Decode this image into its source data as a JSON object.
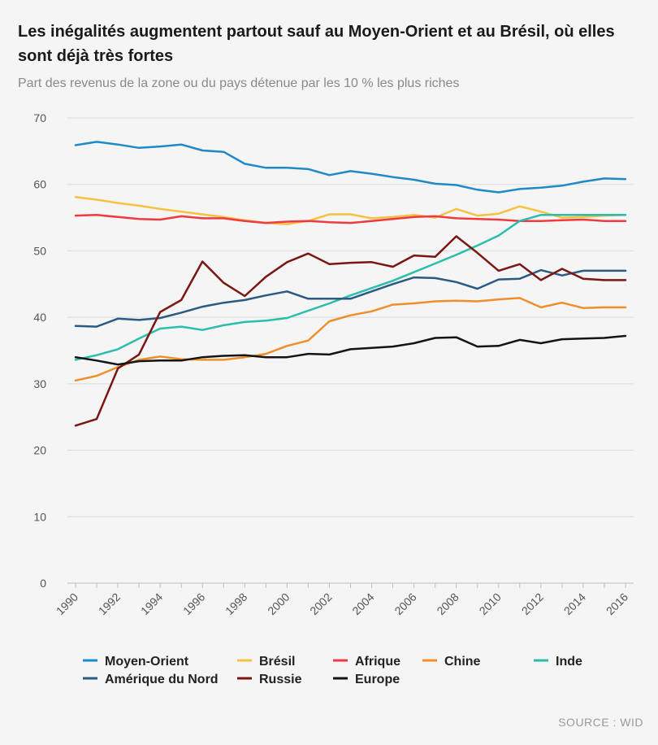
{
  "chart_data": {
    "type": "line",
    "title": "Les inégalités augmentent partout sauf au Moyen-Orient et au Brésil, où elles sont déjà très fortes",
    "subtitle": "Part des revenus de la zone ou du pays détenue par les 10 % les plus riches",
    "xlabel": "",
    "ylabel": "",
    "ylim": [
      0,
      70
    ],
    "yticks": [
      0,
      10,
      20,
      30,
      40,
      50,
      60,
      70
    ],
    "grid": true,
    "legend_position": "bottom",
    "x": [
      1990,
      1991,
      1992,
      1993,
      1994,
      1995,
      1996,
      1997,
      1998,
      1999,
      2000,
      2001,
      2002,
      2003,
      2004,
      2005,
      2006,
      2007,
      2008,
      2009,
      2010,
      2011,
      2012,
      2013,
      2014,
      2015,
      2016
    ],
    "xticks": [
      1990,
      1992,
      1994,
      1996,
      1998,
      2000,
      2002,
      2004,
      2006,
      2008,
      2010,
      2012,
      2014,
      2016
    ],
    "series": [
      {
        "name": "Moyen-Orient",
        "color": "#1f8ac8",
        "values": [
          65.9,
          66.4,
          66.0,
          65.5,
          65.7,
          66.0,
          65.1,
          64.9,
          63.1,
          62.5,
          62.5,
          62.3,
          61.4,
          62.0,
          61.6,
          61.1,
          60.7,
          60.1,
          59.9,
          59.2,
          58.8,
          59.3,
          59.5,
          59.8,
          60.4,
          60.9,
          60.8
        ]
      },
      {
        "name": "Brésil",
        "color": "#f5c242",
        "values": [
          58.1,
          57.7,
          57.2,
          56.8,
          56.3,
          55.9,
          55.5,
          55.1,
          54.6,
          54.2,
          54.0,
          54.5,
          55.5,
          55.5,
          54.9,
          55.1,
          55.4,
          55.0,
          56.3,
          55.3,
          55.6,
          56.7,
          55.9,
          55.0,
          55.1,
          55.3,
          55.4
        ]
      },
      {
        "name": "Afrique",
        "color": "#ef3a40",
        "values": [
          55.3,
          55.4,
          55.1,
          54.8,
          54.7,
          55.2,
          54.9,
          54.9,
          54.5,
          54.2,
          54.4,
          54.5,
          54.3,
          54.2,
          54.5,
          54.8,
          55.1,
          55.2,
          54.9,
          54.8,
          54.7,
          54.5,
          54.5,
          54.6,
          54.7,
          54.5,
          54.5
        ]
      },
      {
        "name": "Chine",
        "color": "#ef8f2a",
        "values": [
          30.5,
          31.2,
          32.5,
          33.6,
          34.1,
          33.7,
          33.6,
          33.6,
          34.0,
          34.5,
          35.7,
          36.5,
          39.4,
          40.3,
          40.9,
          41.9,
          42.1,
          42.4,
          42.5,
          42.4,
          42.7,
          42.9,
          41.5,
          42.2,
          41.4,
          41.5,
          41.5
        ]
      },
      {
        "name": "Inde",
        "color": "#2cbdab",
        "values": [
          33.6,
          34.3,
          35.2,
          36.8,
          38.3,
          38.6,
          38.1,
          38.8,
          39.3,
          39.5,
          39.9,
          41.0,
          42.1,
          43.3,
          44.4,
          45.5,
          46.8,
          48.1,
          49.4,
          50.8,
          52.3,
          54.5,
          55.4,
          55.4,
          55.4,
          55.4,
          55.4
        ]
      },
      {
        "name": "Amérique du Nord",
        "color": "#2b5a83",
        "values": [
          38.7,
          38.6,
          39.8,
          39.6,
          39.9,
          40.7,
          41.6,
          42.2,
          42.6,
          43.3,
          43.9,
          42.8,
          42.8,
          42.8,
          43.9,
          45.0,
          46.0,
          45.9,
          45.3,
          44.3,
          45.7,
          45.8,
          47.1,
          46.3,
          47.0,
          47.0,
          47.0
        ]
      },
      {
        "name": "Russie",
        "color": "#7a1712",
        "values": [
          23.7,
          24.7,
          32.3,
          34.4,
          40.8,
          42.6,
          48.4,
          45.2,
          43.2,
          46.1,
          48.3,
          49.6,
          48.0,
          48.2,
          48.3,
          47.6,
          49.3,
          49.1,
          52.2,
          49.7,
          47.0,
          48.0,
          45.6,
          47.3,
          45.8,
          45.6,
          45.6
        ]
      },
      {
        "name": "Europe",
        "color": "#141414",
        "values": [
          34.0,
          33.5,
          32.9,
          33.4,
          33.5,
          33.5,
          34.0,
          34.2,
          34.3,
          34.0,
          34.0,
          34.5,
          34.4,
          35.2,
          35.4,
          35.6,
          36.1,
          36.9,
          37.0,
          35.6,
          35.7,
          36.6,
          36.1,
          36.7,
          36.8,
          36.9,
          37.2
        ]
      }
    ]
  },
  "source_label": "SOURCE : WID"
}
